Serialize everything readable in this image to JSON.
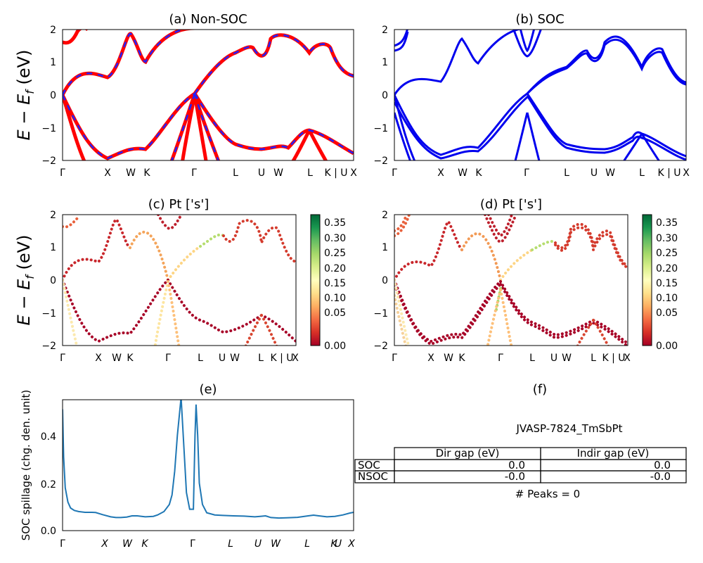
{
  "chart_data": [
    {
      "id": "a",
      "type": "line",
      "title": "(a) Non-SOC",
      "ylabel_main": "E − E",
      "ylabel_sub": "f",
      "ylabel_tail": " (eV)",
      "ylim": [
        -2,
        2
      ],
      "yticks": [
        "2",
        "1",
        "0",
        "−1",
        "−2"
      ],
      "xticks": [
        "Γ",
        "X",
        "W",
        "K",
        "Γ",
        "L",
        "U",
        "W",
        "L",
        "K | U",
        "X"
      ],
      "series": [
        {
          "style": "red-with-blue-dashes"
        }
      ]
    },
    {
      "id": "b",
      "type": "line",
      "title": "(b) SOC",
      "ylim": [
        -2,
        2
      ],
      "yticks": [
        "2",
        "1",
        "0",
        "−1",
        "−2"
      ],
      "xticks": [
        "Γ",
        "X",
        "W",
        "K",
        "Γ",
        "L",
        "U",
        "W",
        "L",
        "K | U",
        "X"
      ],
      "series": [
        {
          "style": "blue"
        }
      ]
    },
    {
      "id": "c",
      "type": "scatter",
      "title": "(c)  Pt ['s']",
      "ylabel_main": "E − E",
      "ylabel_sub": "f",
      "ylabel_tail": " (eV)",
      "ylim": [
        -2,
        2
      ],
      "yticks": [
        "2",
        "1",
        "0",
        "−1",
        "−2"
      ],
      "xticks": [
        "Γ",
        "X",
        "W",
        "K",
        "Γ",
        "L",
        "U",
        "W",
        "L",
        "K | U",
        "X"
      ],
      "colorbar": {
        "colormap": "RdYlGn",
        "range": [
          0.0,
          0.37
        ],
        "ticks": [
          "0.35",
          "0.30",
          "0.25",
          "0.20",
          "0.15",
          "0.10",
          "0.05",
          "0.00"
        ]
      }
    },
    {
      "id": "d",
      "type": "scatter",
      "title": "(d) Pt ['s']",
      "ylim": [
        -2,
        2
      ],
      "yticks": [
        "2",
        "1",
        "0",
        "−1",
        "−2"
      ],
      "xticks": [
        "Γ",
        "X",
        "W",
        "K",
        "Γ",
        "L",
        "U",
        "W",
        "L",
        "K | U",
        "X"
      ],
      "colorbar": {
        "colormap": "RdYlGn",
        "range": [
          0.0,
          0.37
        ],
        "ticks": [
          "0.35",
          "0.30",
          "0.25",
          "0.20",
          "0.15",
          "0.10",
          "0.05",
          "0.00"
        ]
      }
    },
    {
      "id": "e",
      "type": "line",
      "title": "(e)",
      "ylabel": "SOC spillage (chg. den. unit)",
      "ylim": [
        0,
        0.55
      ],
      "yticks": [
        "0.4",
        "0.2",
        "0.0"
      ],
      "xticks": [
        "Γ",
        "X",
        "W",
        "K",
        "Γ",
        "L",
        "U",
        "W",
        "L",
        "K",
        "U",
        "X"
      ],
      "series": [
        {
          "x": [
            0,
            0.02,
            0.05,
            0.1,
            0.15,
            0.22,
            0.3,
            0.42,
            0.55,
            0.62,
            0.75,
            0.9,
            1.0,
            1.09,
            1.2,
            1.3,
            1.4,
            1.55,
            1.7,
            1.78,
            1.9,
            2.0,
            2.05,
            2.1,
            2.15,
            2.22,
            2.32,
            2.38,
            2.42,
            2.45,
            2.48,
            2.5,
            2.53,
            2.56,
            2.62,
            2.7,
            2.85,
            3.0,
            3.2,
            3.4,
            3.6,
            3.7,
            3.8,
            3.9,
            4.05,
            4.2,
            4.4,
            4.6,
            4.7,
            4.8,
            4.95,
            5.1,
            5.25,
            5.38,
            5.45
          ],
          "values": [
            0.51,
            0.31,
            0.18,
            0.12,
            0.095,
            0.085,
            0.08,
            0.077,
            0.077,
            0.076,
            0.067,
            0.058,
            0.055,
            0.055,
            0.057,
            0.062,
            0.062,
            0.058,
            0.06,
            0.066,
            0.08,
            0.11,
            0.15,
            0.25,
            0.4,
            0.56,
            0.16,
            0.09,
            0.09,
            0.09,
            0.4,
            0.53,
            0.4,
            0.2,
            0.11,
            0.075,
            0.066,
            0.064,
            0.062,
            0.061,
            0.058,
            0.06,
            0.062,
            0.055,
            0.053,
            0.054,
            0.056,
            0.062,
            0.065,
            0.062,
            0.058,
            0.06,
            0.066,
            0.074,
            0.077
          ]
        }
      ]
    },
    {
      "id": "f",
      "type": "table",
      "title": "(f)",
      "caption": "JVASP-7824_TmSbPt",
      "columns": [
        "Dir gap (eV)",
        "Indir gap (eV)"
      ],
      "rows": [
        {
          "label": "SOC",
          "values": [
            "0.0",
            "0.0"
          ]
        },
        {
          "label": "NSOC",
          "values": [
            "-0.0",
            "-0.0"
          ]
        }
      ],
      "footer": "# Peaks = 0"
    }
  ]
}
